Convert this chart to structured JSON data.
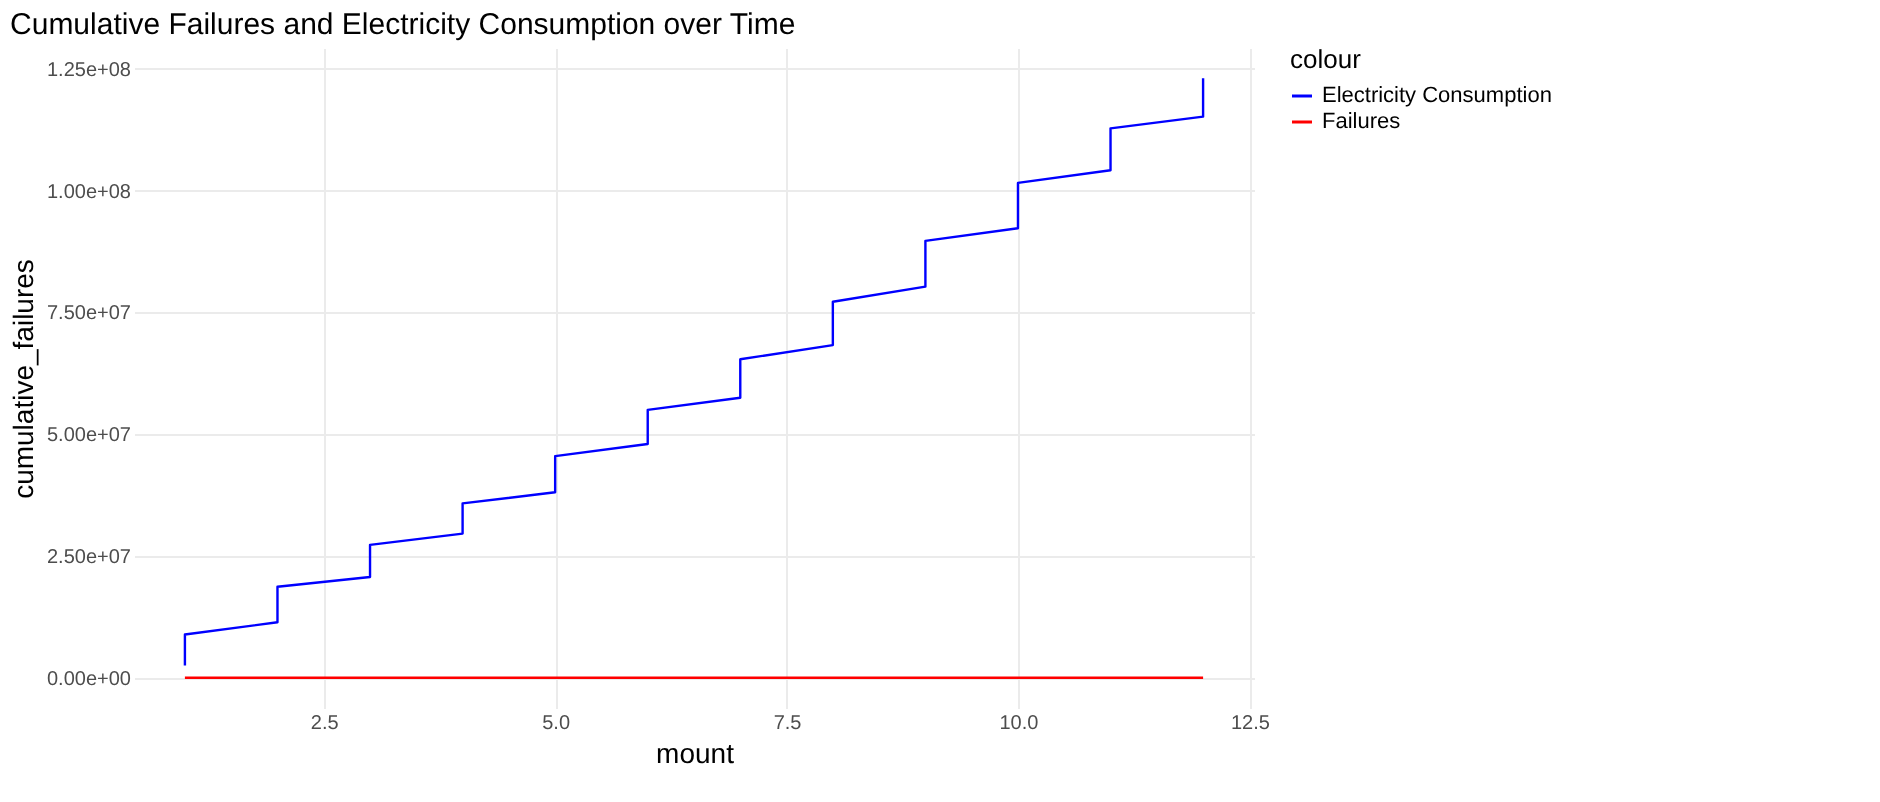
{
  "chart_data": {
    "type": "line",
    "title": "Cumulative Failures and Electricity Consumption over Time",
    "xlabel": "mount",
    "ylabel": "cumulative_failures",
    "legend_title": "colour",
    "series": [
      {
        "name": "Electricity Consumption",
        "color": "#0000ff",
        "x": [
          1,
          1,
          2,
          2,
          3,
          3,
          4,
          4,
          5,
          5,
          6,
          6,
          7,
          7,
          8,
          8,
          9,
          9,
          10,
          10,
          11,
          11,
          12,
          12
        ],
        "values": [
          2550000,
          8900000,
          11400000,
          18700000,
          20700000,
          27300000,
          29600000,
          35800000,
          38100000,
          45500000,
          48000000,
          55000000,
          57500000,
          65400000,
          68300000,
          77200000,
          80300000,
          89700000,
          92300000,
          101600000,
          104200000,
          112800000,
          115200000,
          123100000
        ]
      },
      {
        "name": "Failures",
        "color": "#ff0000",
        "x": [
          1,
          12
        ],
        "values": [
          0,
          0
        ]
      }
    ],
    "xlim": [
      0.45,
      12.55
    ],
    "ylim": [
      -6200000,
      129300000
    ],
    "xticks": [
      2.5,
      {
        "value": 5,
        "label": "5.0"
      },
      7.5,
      {
        "value": 10,
        "label": "10.0"
      },
      12.5
    ],
    "yticks": [
      {
        "value": 0,
        "label": "0.00e+00"
      },
      {
        "value": 25000000,
        "label": "2.50e+07"
      },
      {
        "value": 50000000,
        "label": "5.00e+07"
      },
      {
        "value": 75000000,
        "label": "7.50e+07"
      },
      {
        "value": 100000000,
        "label": "1.00e+08"
      },
      {
        "value": 125000000,
        "label": "1.25e+08"
      }
    ],
    "grid": true,
    "legend": "right",
    "marker": "none",
    "line_style": "solid"
  }
}
